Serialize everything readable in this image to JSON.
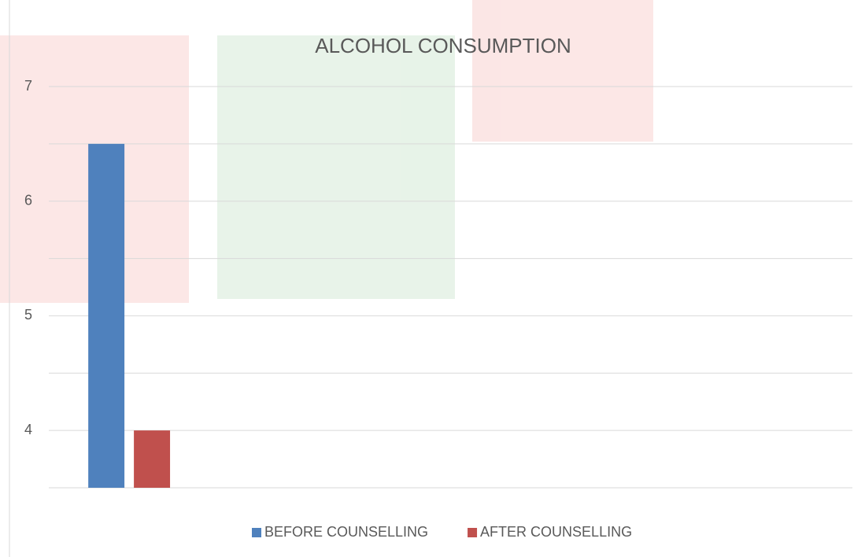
{
  "chart_data": {
    "type": "bar",
    "title": "ALCOHOL CONSUMPTION",
    "categories": [
      null,
      null,
      null,
      null,
      null
    ],
    "series": [
      {
        "name": "BEFORE COUNSELLING",
        "color": "#4f81bd",
        "values": [
          6.5,
          null,
          null,
          null,
          null
        ]
      },
      {
        "name": "AFTER COUNSELLING",
        "color": "#c0504d",
        "values": [
          4,
          null,
          null,
          null,
          null
        ]
      }
    ],
    "ylim": [
      3.5,
      7
    ],
    "yticks": [
      4,
      5,
      6,
      7
    ],
    "minor_yticks": [
      3.5,
      4.5,
      5.5,
      6.5
    ],
    "grid": true,
    "legend": "bottom"
  }
}
